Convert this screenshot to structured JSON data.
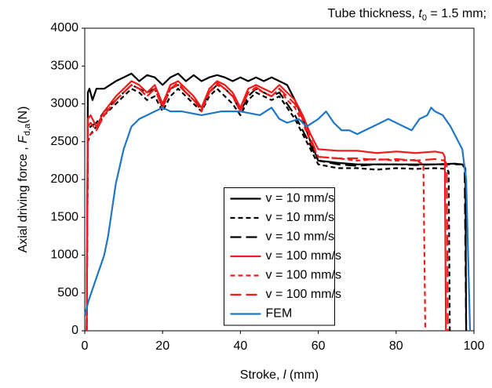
{
  "chart_data": {
    "type": "line",
    "annotation": {
      "prefix": "Tube thickness, ",
      "symbol": "t",
      "subscript": "0",
      "suffix": " = 1.5 mm;"
    },
    "x_label": {
      "prefix": "Stroke, ",
      "symbol": "l",
      "suffix": " (mm)"
    },
    "y_label": {
      "prefix": "Axial driving force , ",
      "symbol": "F",
      "subscript": "d,a",
      "suffix": "(N)"
    },
    "xlim": [
      0,
      100
    ],
    "xticks": [
      0,
      20,
      40,
      60,
      80,
      100
    ],
    "ylim": [
      0,
      4000
    ],
    "yticks": [
      0,
      500,
      1000,
      1500,
      2000,
      2500,
      3000,
      3500,
      4000
    ],
    "grid": false,
    "legend": "lower center",
    "series": [
      {
        "name": "v = 10 mm/s",
        "color": "#000000",
        "dash": "solid",
        "x": [
          0.5,
          0.8,
          1.2,
          2,
          3,
          5,
          8,
          10,
          12,
          14,
          16,
          18,
          20,
          22,
          24,
          26,
          28,
          30,
          32,
          34,
          36,
          38,
          40,
          42,
          44,
          46,
          48,
          50,
          52,
          54,
          56,
          58,
          60,
          65,
          70,
          75,
          80,
          85,
          90,
          95,
          97,
          97.8,
          98
        ],
        "values": [
          0,
          3150,
          3200,
          3050,
          3200,
          3200,
          3300,
          3350,
          3400,
          3300,
          3380,
          3350,
          3250,
          3350,
          3400,
          3300,
          3380,
          3300,
          3350,
          3380,
          3350,
          3300,
          3350,
          3300,
          3350,
          3300,
          3350,
          3300,
          3250,
          3050,
          2800,
          2500,
          2250,
          2220,
          2200,
          2200,
          2200,
          2200,
          2200,
          2210,
          2200,
          2150,
          0
        ]
      },
      {
        "name": "v = 10 mm/s",
        "color": "#000000",
        "dash": "short",
        "x": [
          0.5,
          0.8,
          1.5,
          3,
          5,
          8,
          10,
          12,
          14,
          16,
          18,
          20,
          22,
          24,
          26,
          28,
          30,
          32,
          34,
          36,
          38,
          40,
          42,
          44,
          46,
          48,
          50,
          52,
          54,
          56,
          58,
          60,
          65,
          70,
          75,
          80,
          85,
          90,
          93,
          93.5,
          93.8
        ],
        "values": [
          0,
          2500,
          2600,
          2700,
          2850,
          3000,
          3100,
          3200,
          3150,
          3050,
          3100,
          2900,
          3100,
          3200,
          3100,
          3000,
          2900,
          3100,
          3200,
          3100,
          3000,
          2850,
          3050,
          3150,
          3100,
          3050,
          3100,
          2950,
          2800,
          2600,
          2400,
          2200,
          2150,
          2150,
          2130,
          2150,
          2140,
          2150,
          2140,
          2100,
          0
        ]
      },
      {
        "name": "v = 10 mm/s",
        "color": "#000000",
        "dash": "long",
        "x": [
          0.5,
          0.8,
          1.5,
          3,
          5,
          8,
          10,
          12,
          14,
          16,
          18,
          20,
          22,
          24,
          26,
          28,
          30,
          32,
          34,
          36,
          38,
          40,
          42,
          44,
          46,
          48,
          50,
          52,
          54,
          56,
          58,
          60,
          65,
          70,
          75,
          80,
          85,
          90,
          95,
          97,
          97.6,
          98
        ],
        "values": [
          0,
          2650,
          2700,
          2750,
          2900,
          3050,
          3150,
          3250,
          3200,
          3150,
          3200,
          2950,
          3200,
          3250,
          3150,
          3050,
          2950,
          3150,
          3250,
          3200,
          3100,
          2900,
          3100,
          3200,
          3150,
          3100,
          3150,
          3000,
          2850,
          2650,
          2450,
          2250,
          2200,
          2180,
          2200,
          2200,
          2190,
          2200,
          2200,
          2200,
          2150,
          0
        ]
      },
      {
        "name": "v = 100 mm/s",
        "color": "#ee1c1c",
        "dash": "solid",
        "x": [
          0.5,
          0.8,
          1.5,
          3,
          5,
          8,
          10,
          12,
          14,
          16,
          18,
          20,
          22,
          24,
          26,
          28,
          30,
          32,
          34,
          36,
          38,
          40,
          42,
          44,
          46,
          48,
          50,
          52,
          54,
          56,
          58,
          60,
          65,
          70,
          75,
          80,
          85,
          90,
          92,
          92.5,
          92.8
        ],
        "values": [
          0,
          2800,
          2850,
          2700,
          2900,
          3100,
          3200,
          3300,
          3250,
          3150,
          3250,
          3000,
          3250,
          3300,
          3200,
          3100,
          2950,
          3200,
          3300,
          3250,
          3150,
          2950,
          3200,
          3250,
          3200,
          3150,
          3250,
          3150,
          3050,
          2850,
          2600,
          2400,
          2380,
          2380,
          2350,
          2370,
          2350,
          2370,
          2350,
          2300,
          0
        ]
      },
      {
        "name": "v = 100 mm/s",
        "color": "#ee1c1c",
        "dash": "short",
        "x": [
          0.5,
          0.8,
          1.5,
          3,
          5,
          8,
          10,
          12,
          14,
          16,
          18,
          20,
          22,
          24,
          26,
          28,
          30,
          32,
          34,
          36,
          38,
          40,
          42,
          44,
          46,
          48,
          50,
          52,
          54,
          56,
          58,
          60,
          65,
          70,
          75,
          80,
          85,
          87,
          87.5
        ],
        "values": [
          0,
          2550,
          2600,
          2650,
          2850,
          3050,
          3150,
          3250,
          3200,
          3100,
          3200,
          2950,
          3200,
          3250,
          3150,
          3050,
          2900,
          3150,
          3250,
          3200,
          3100,
          2900,
          3150,
          3200,
          3150,
          3100,
          3200,
          3050,
          2950,
          2750,
          2500,
          2300,
          2280,
          2250,
          2270,
          2250,
          2260,
          2200,
          0
        ]
      },
      {
        "name": "v = 100 mm/s",
        "color": "#ee1c1c",
        "dash": "long",
        "x": [
          0.5,
          0.8,
          1.5,
          3,
          5,
          8,
          10,
          12,
          14,
          16,
          18,
          20,
          22,
          24,
          26,
          28,
          30,
          32,
          34,
          36,
          38,
          40,
          42,
          44,
          46,
          48,
          50,
          52,
          54,
          56,
          58,
          60,
          65,
          70,
          75,
          80,
          85,
          90,
          92.5,
          93,
          93.3
        ],
        "values": [
          0,
          2700,
          2750,
          2650,
          2850,
          3050,
          3150,
          3250,
          3200,
          3100,
          3200,
          2950,
          3200,
          3280,
          3150,
          3050,
          2920,
          3150,
          3280,
          3200,
          3100,
          2920,
          3150,
          3220,
          3150,
          3100,
          3200,
          3100,
          3000,
          2800,
          2550,
          2300,
          2280,
          2280,
          2260,
          2270,
          2250,
          2270,
          2250,
          2200,
          0
        ]
      },
      {
        "name": "FEM",
        "color": "#1f77c4",
        "dash": "solid",
        "x": [
          0,
          1,
          2,
          3,
          4,
          5,
          6,
          7,
          8,
          10,
          12,
          14,
          16,
          18,
          20,
          22,
          25,
          30,
          35,
          40,
          45,
          48,
          50,
          52,
          55,
          57,
          60,
          62,
          64,
          66,
          68,
          70,
          72,
          74,
          76,
          78,
          80,
          82,
          84,
          86,
          88,
          89,
          90,
          92,
          94,
          96,
          97,
          98,
          99
        ],
        "values": [
          200,
          400,
          550,
          700,
          850,
          1000,
          1250,
          1600,
          1950,
          2400,
          2700,
          2800,
          2850,
          2900,
          2950,
          2900,
          2900,
          2850,
          2900,
          2900,
          2850,
          2950,
          2800,
          2750,
          2800,
          2700,
          2800,
          2900,
          2750,
          2650,
          2650,
          2600,
          2650,
          2700,
          2750,
          2800,
          2750,
          2700,
          2650,
          2800,
          2850,
          2950,
          2900,
          2850,
          2700,
          2500,
          2400,
          2000,
          0
        ]
      }
    ]
  }
}
